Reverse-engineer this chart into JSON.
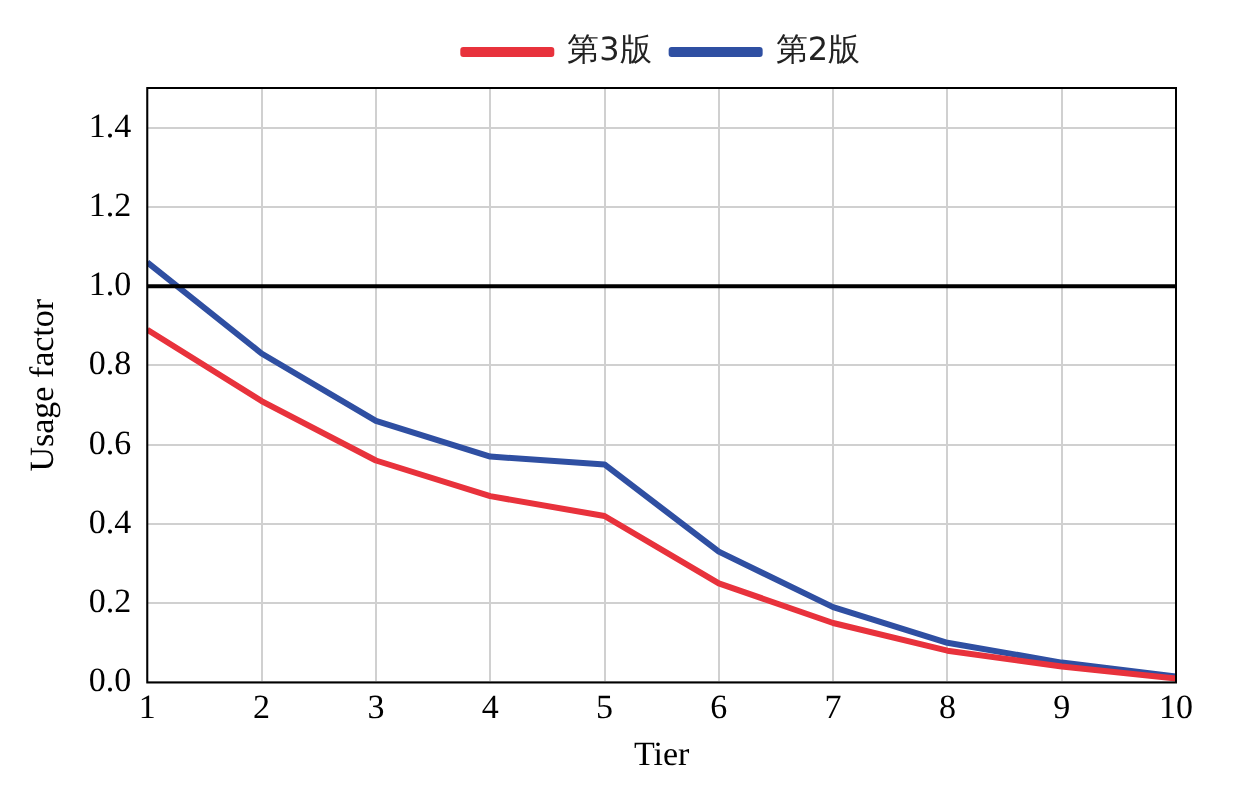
{
  "chart_data": {
    "type": "line",
    "xlabel": "Tier",
    "ylabel": "Usage factor",
    "x": [
      1,
      2,
      3,
      4,
      5,
      6,
      7,
      8,
      9,
      10
    ],
    "series": [
      {
        "name": "第3版",
        "color": "#e8323c",
        "values": [
          0.89,
          0.71,
          0.56,
          0.47,
          0.42,
          0.25,
          0.15,
          0.08,
          0.04,
          0.01
        ]
      },
      {
        "name": "第2版",
        "color": "#2f4fa2",
        "values": [
          1.06,
          0.83,
          0.66,
          0.57,
          0.55,
          0.33,
          0.19,
          0.1,
          0.05,
          0.015
        ]
      }
    ],
    "xlim": [
      1,
      10
    ],
    "xticks": [
      1,
      2,
      3,
      4,
      5,
      6,
      7,
      8,
      9,
      10
    ],
    "ylim": [
      0,
      1.5
    ],
    "yticks": [
      {
        "value": 0,
        "label": "0.0"
      },
      0.2,
      0.4,
      0.6,
      0.8,
      {
        "value": 1,
        "label": "1.0"
      },
      1.2,
      1.4
    ],
    "ref_lines": [
      {
        "axis": "y",
        "value": 1,
        "color": "#000000"
      }
    ],
    "grid": true,
    "legend": "top",
    "marker": "none",
    "line_style": "solid"
  }
}
